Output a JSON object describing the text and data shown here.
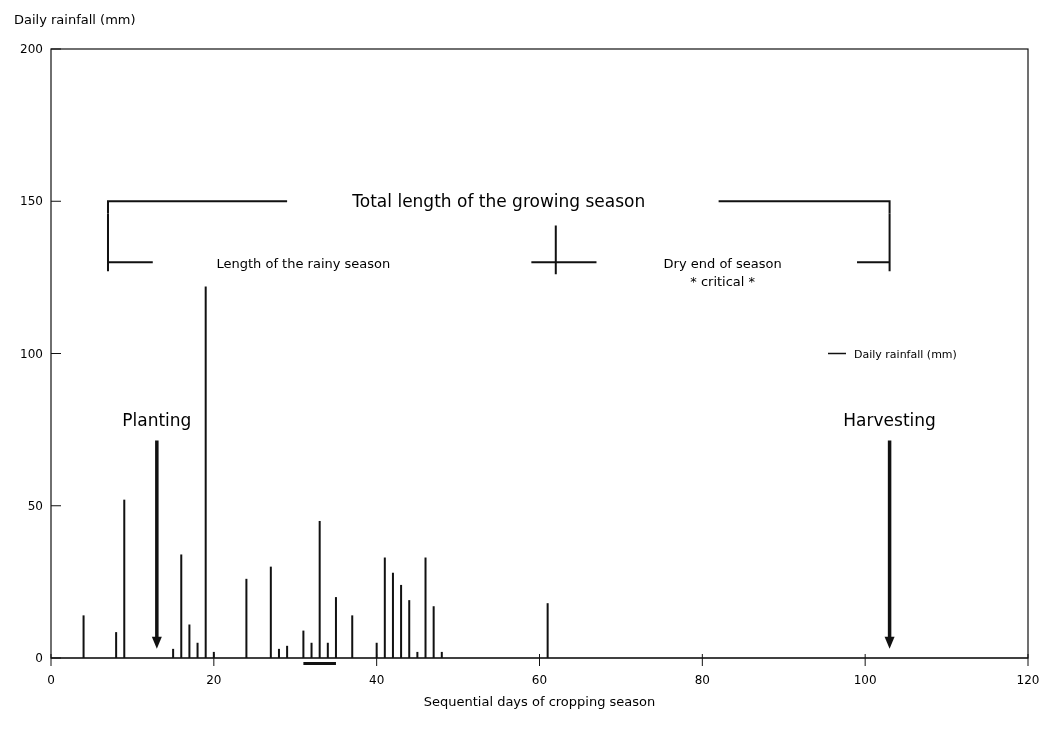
{
  "chart_data": {
    "type": "bar",
    "ylabel": "Daily rainfall (mm)",
    "xlabel": "Sequential days of cropping season",
    "x": [
      4,
      8,
      9,
      15,
      16,
      17,
      18,
      19,
      20,
      24,
      27,
      28,
      29,
      31,
      32,
      33,
      34,
      35,
      37,
      40,
      41,
      42,
      43,
      44,
      45,
      46,
      47,
      48,
      61
    ],
    "series": [
      {
        "name": "Daily rainfall (mm)",
        "color": "#111111",
        "values": [
          14,
          8.5,
          52,
          3,
          34,
          11,
          5,
          122,
          2,
          26,
          30,
          3,
          4,
          9,
          5,
          45,
          5,
          20,
          14,
          5,
          33,
          28,
          24,
          19,
          2,
          33,
          17,
          2,
          18
        ]
      }
    ],
    "xlim": [
      0,
      120
    ],
    "xticks": [
      0,
      20,
      40,
      60,
      80,
      100,
      120
    ],
    "ylim": [
      0,
      200
    ],
    "yticks": [
      0,
      50,
      100,
      150,
      200
    ],
    "grid": false,
    "legend": "right",
    "annotations": [
      "Total length of the growing season",
      "Length of the rainy season",
      "Dry end of season",
      "* critical *",
      "Planting",
      "Harvesting"
    ]
  }
}
